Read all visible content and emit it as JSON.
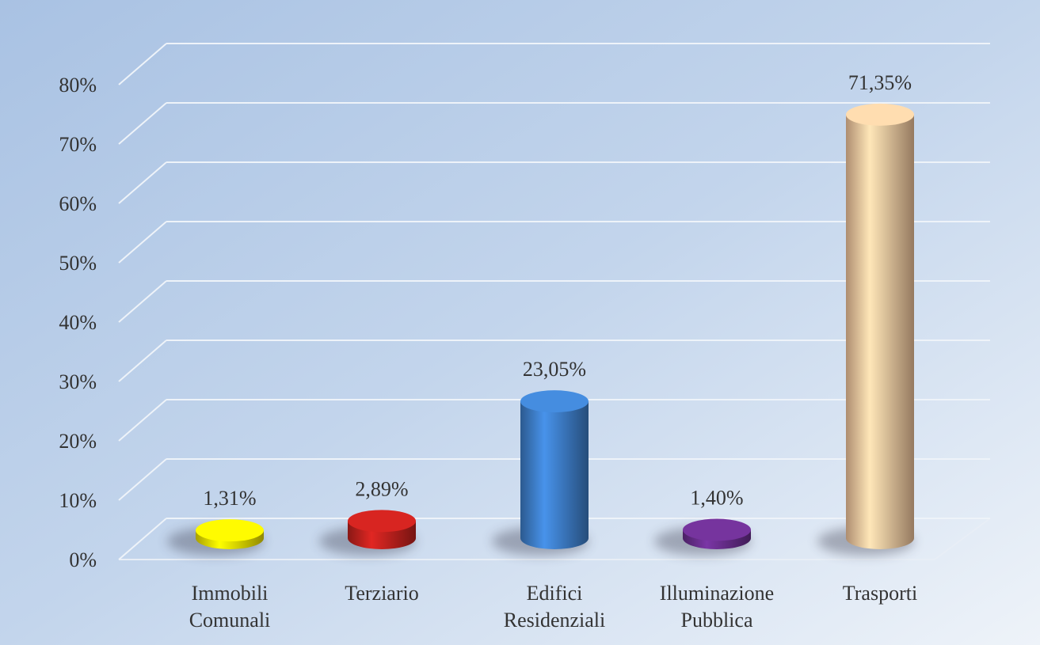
{
  "chart_data": {
    "type": "bar",
    "categories": [
      [
        "Immobili",
        "Comunali"
      ],
      [
        "Terziario"
      ],
      [
        "Edifici",
        "Residenziali"
      ],
      [
        "Illuminazione",
        "Pubblica"
      ],
      [
        "Trasporti"
      ]
    ],
    "values": [
      1.31,
      2.89,
      23.05,
      1.4,
      71.35
    ],
    "value_labels": [
      "1,31%",
      "2,89%",
      "23,05%",
      "1,40%",
      "71,35%"
    ],
    "colors": [
      "#f2e400",
      "#c4221e",
      "#3f80cc",
      "#6b2f90",
      "#f8c9a0"
    ],
    "ylim": [
      0,
      80
    ],
    "yticks": [
      {
        "value": 0,
        "label": "0%"
      },
      {
        "value": 10,
        "label": "10%"
      },
      {
        "value": 20,
        "label": "20%"
      },
      {
        "value": 30,
        "label": "30%"
      },
      {
        "value": 40,
        "label": "40%"
      },
      {
        "value": 50,
        "label": "50%"
      },
      {
        "value": 60,
        "label": "60%"
      },
      {
        "value": 70,
        "label": "70%"
      },
      {
        "value": 80,
        "label": "80%"
      }
    ],
    "grid": true
  }
}
